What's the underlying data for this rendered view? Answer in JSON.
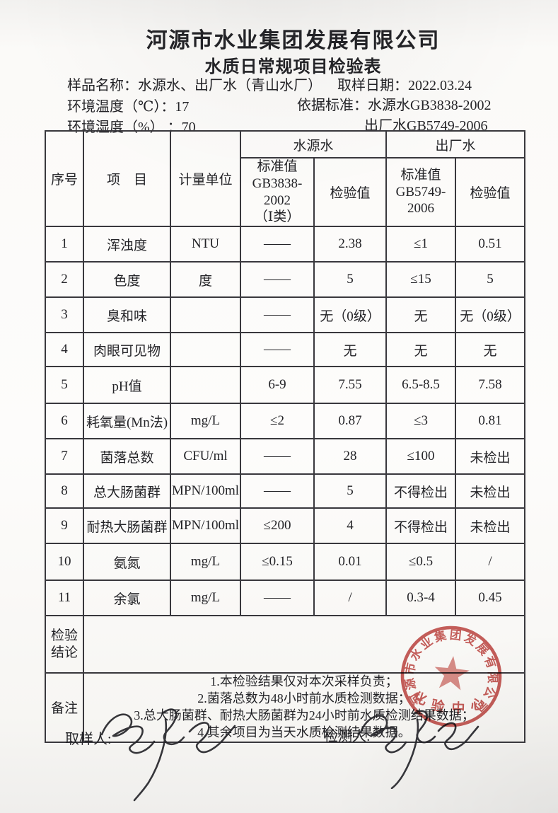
{
  "document": {
    "company": "河源市水业集团发展有限公司",
    "title": "水质日常规项目检验表",
    "sample_name_label": "样品名称：",
    "sample_name": "水源水、出厂水（青山水厂）",
    "sampling_date_label": "取样日期：",
    "sampling_date": "2022.03.24",
    "env_temp_label": "环境温度（℃）：",
    "env_temp": "17",
    "standard_label": "依据标准：",
    "standard_source": "水源水GB3838-2002",
    "standard_factory": "出厂水GB5749-2006",
    "env_humidity_label": "环境湿度（%） ：",
    "env_humidity": "70"
  },
  "table": {
    "headers": {
      "no": "序号",
      "item": "项　目",
      "unit": "计量单位",
      "source_group": "水源水",
      "factory_group": "出厂水",
      "source_std": "标准值\nGB3838-2002\n（Ⅰ类）",
      "source_val": "检验值",
      "factory_std": "标准值\nGB5749-2006",
      "factory_val": "检验值"
    },
    "rows": [
      {
        "no": "1",
        "item": "浑浊度",
        "unit": "NTU",
        "src_std": "——",
        "src_val": "2.38",
        "fac_std": "≤1",
        "fac_val": "0.51"
      },
      {
        "no": "2",
        "item": "色度",
        "unit": "度",
        "src_std": "——",
        "src_val": "5",
        "fac_std": "≤15",
        "fac_val": "5"
      },
      {
        "no": "3",
        "item": "臭和味",
        "unit": "",
        "src_std": "——",
        "src_val": "无（0级）",
        "fac_std": "无",
        "fac_val": "无（0级）"
      },
      {
        "no": "4",
        "item": "肉眼可见物",
        "unit": "",
        "src_std": "——",
        "src_val": "无",
        "fac_std": "无",
        "fac_val": "无"
      },
      {
        "no": "5",
        "item": "pH值",
        "unit": "",
        "src_std": "6-9",
        "src_val": "7.55",
        "fac_std": "6.5-8.5",
        "fac_val": "7.58"
      },
      {
        "no": "6",
        "item": "耗氧量(Mn法)",
        "unit": "mg/L",
        "src_std": "≤2",
        "src_val": "0.87",
        "fac_std": "≤3",
        "fac_val": "0.81"
      },
      {
        "no": "7",
        "item": "菌落总数",
        "unit": "CFU/ml",
        "src_std": "——",
        "src_val": "28",
        "fac_std": "≤100",
        "fac_val": "未检出"
      },
      {
        "no": "8",
        "item": "总大肠菌群",
        "unit": "MPN/100ml",
        "src_std": "——",
        "src_val": "5",
        "fac_std": "不得检出",
        "fac_val": "未检出"
      },
      {
        "no": "9",
        "item": "耐热大肠菌群",
        "unit": "MPN/100ml",
        "src_std": "≤200",
        "src_val": "4",
        "fac_std": "不得检出",
        "fac_val": "未检出"
      },
      {
        "no": "10",
        "item": "氨氮",
        "unit": "mg/L",
        "src_std": "≤0.15",
        "src_val": "0.01",
        "fac_std": "≤0.5",
        "fac_val": "/"
      },
      {
        "no": "11",
        "item": "余氯",
        "unit": "mg/L",
        "src_std": "——",
        "src_val": "/",
        "fac_std": "0.3-4",
        "fac_val": "0.45"
      }
    ],
    "conclusion": {
      "label": "检验\n结论",
      "value": ""
    },
    "remarks": {
      "label": "备注",
      "lines": [
        "1.本检验结果仅对本次采样负责；",
        "2.菌落总数为48小时前水质检测数据；",
        "3.总大肠菌群、耐热大肠菌群为24小时前水质检测结果数据；",
        "4.其余项目为当天水质检测结果数据。"
      ]
    }
  },
  "footer": {
    "sampler_label": "取样人:",
    "tester_label": "检测人:"
  },
  "stamp": {
    "company": "河源市水业集团发展有限公司",
    "bottom": "化验中心",
    "color": "#c4534f"
  }
}
